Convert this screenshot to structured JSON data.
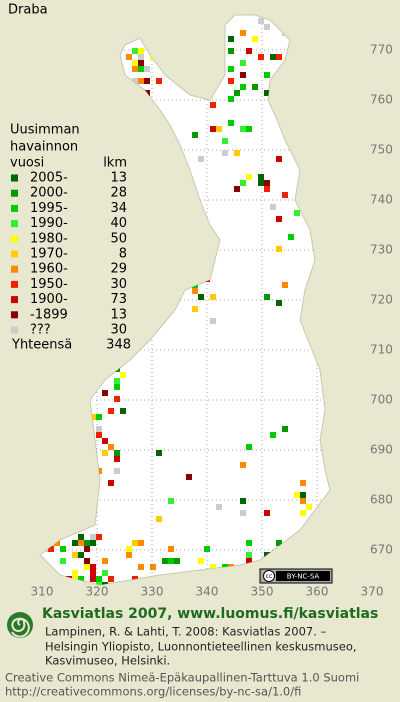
{
  "title": "Draba",
  "legend": {
    "heading": [
      "Uusimman",
      "havainnon"
    ],
    "col_headers": [
      "vuosi",
      "lkm"
    ],
    "rows": [
      {
        "label": "2005-",
        "count": 13,
        "color": "#006400"
      },
      {
        "label": "2000-",
        "count": 28,
        "color": "#009900"
      },
      {
        "label": "1995-",
        "count": 34,
        "color": "#00cc00"
      },
      {
        "label": "1990-",
        "count": 40,
        "color": "#33ee33"
      },
      {
        "label": "1980-",
        "count": 50,
        "color": "#ffff00"
      },
      {
        "label": "1970-",
        "count": 8,
        "color": "#ffcc00"
      },
      {
        "label": "1960-",
        "count": 29,
        "color": "#ff8800"
      },
      {
        "label": "1950-",
        "count": 30,
        "color": "#ee2200"
      },
      {
        "label": "1900-",
        "count": 73,
        "color": "#cc0000"
      },
      {
        "label": "-1899",
        "count": 13,
        "color": "#880000"
      },
      {
        "label": "???",
        "count": 30,
        "color": "#cccccc"
      }
    ],
    "total": {
      "label": "Yhteensä",
      "count": 348
    }
  },
  "grid": {
    "x_labels": [
      310,
      320,
      330,
      340,
      350,
      360,
      370
    ],
    "y_labels": [
      670,
      680,
      690,
      700,
      710,
      720,
      730,
      740,
      750,
      760,
      770
    ]
  },
  "badge": {
    "cc": "cc",
    "license": "BY-NC-SA"
  },
  "footer": {
    "heading": "Kasviatlas 2007, www.luomus.fi/kasviatlas",
    "citation": [
      "Lampinen, R. & Lahti, T. 2008: Kasviatlas 2007. –",
      "Helsingin Yliopisto, Luonnontieteellinen keskusmuseo,",
      "Kasvimuseo, Helsinki."
    ],
    "license": [
      "Creative Commons Nimeä-Epäkaupallinen-Tarttuva 1.0 Suomi",
      "http://creativecommons.org/licenses/by-nc-sa/1.0/fi"
    ]
  }
}
